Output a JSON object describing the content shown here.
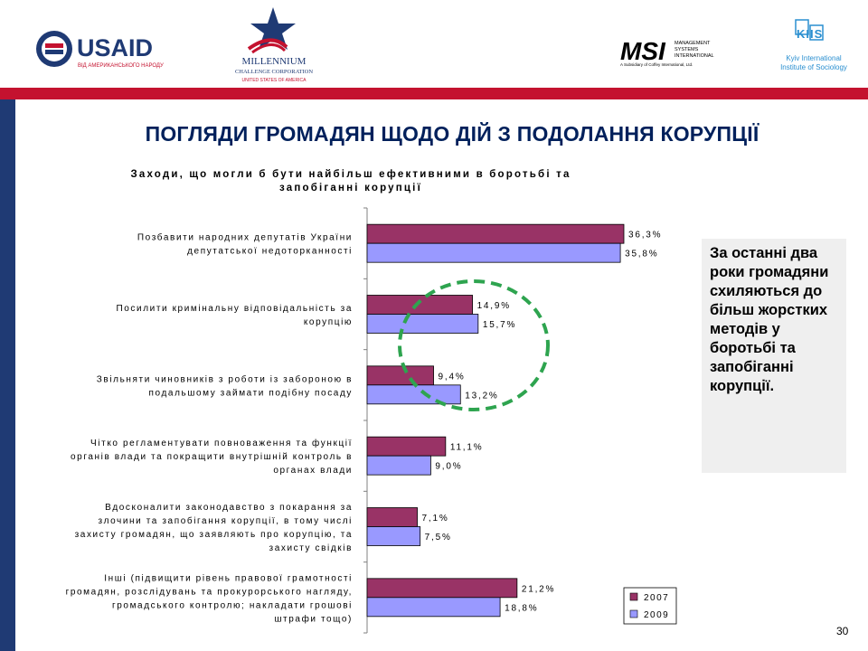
{
  "logos": {
    "usaid": {
      "name": "USAID",
      "tagline": "ВІД АМЕРИКАНСЬКОГО НАРОДУ"
    },
    "mcc": {
      "line1": "MILLENNIUM",
      "line2": "CHALLENGE CORPORATION",
      "line3": "UNITED STATES OF AMERICA"
    },
    "msi": {
      "name": "MSI",
      "sub1": "MANAGEMENT",
      "sub2": "SYSTEMS",
      "sub3": "INTERNATIONAL",
      "tagline": "A Subsidiary of Coffey International, Ltd."
    },
    "kiis": {
      "mark": "KIIS",
      "line1": "Kyiv International",
      "line2": "Institute of Sociology"
    }
  },
  "slide_title": "ПОГЛЯДИ ГРОМАДЯН ЩОДО ДІЙ З ПОДОЛАННЯ КОРУПЦІЇ",
  "callout_text": "За останні два роки громадяни схиляються до більш жорстких методів у боротьбі та запобіганні корупції.",
  "page_number": "30",
  "colors": {
    "series_2007": "#993366",
    "series_2009": "#9999ff",
    "circle": "#2ea44f",
    "brand_red": "#c4122f",
    "brand_navy": "#1f3a74"
  },
  "chart_data": {
    "type": "bar",
    "orientation": "horizontal",
    "title_lines": [
      "Заходи, що могли б бути найбільш ефективними в боротьбі та",
      "запобіганні корупції"
    ],
    "categories": [
      [
        "Позбавити народних депутатів України",
        "депутатської недоторканності"
      ],
      [
        "Посилити кримінальну відповідальність за",
        "корупцію"
      ],
      [
        "Звільняти чиновників з роботи із забороною в",
        "подальшому займати подібну посаду"
      ],
      [
        "Чітко регламентувати повноваження та функції",
        "органів влади та покращити внутрішній контроль в",
        "органах влади"
      ],
      [
        "Вдосконалити законодавство з покарання за",
        "злочини та запобігання корупції, в тому числі",
        "захисту громадян, що заявляють про корупцію, та",
        "захисту свідків"
      ],
      [
        "Інші (підвищити рівень правової грамотності",
        "громадян, розслідувань та прокурорського нагляду,",
        "громадського контролю; накладати грошові",
        "штрафи тощо)"
      ]
    ],
    "series": [
      {
        "name": "2007",
        "values": [
          36.3,
          14.9,
          9.4,
          11.1,
          7.1,
          21.2
        ],
        "labels": [
          "36,3%",
          "14,9%",
          "9,4%",
          "11,1%",
          "7,1%",
          "21,2%"
        ]
      },
      {
        "name": "2009",
        "values": [
          35.8,
          15.7,
          13.2,
          9.0,
          7.5,
          18.8
        ],
        "labels": [
          "35,8%",
          "15,7%",
          "13,2%",
          "9,0%",
          "7,5%",
          "18,8%"
        ]
      }
    ],
    "legend_position": "bottom-right",
    "grid": false
  }
}
